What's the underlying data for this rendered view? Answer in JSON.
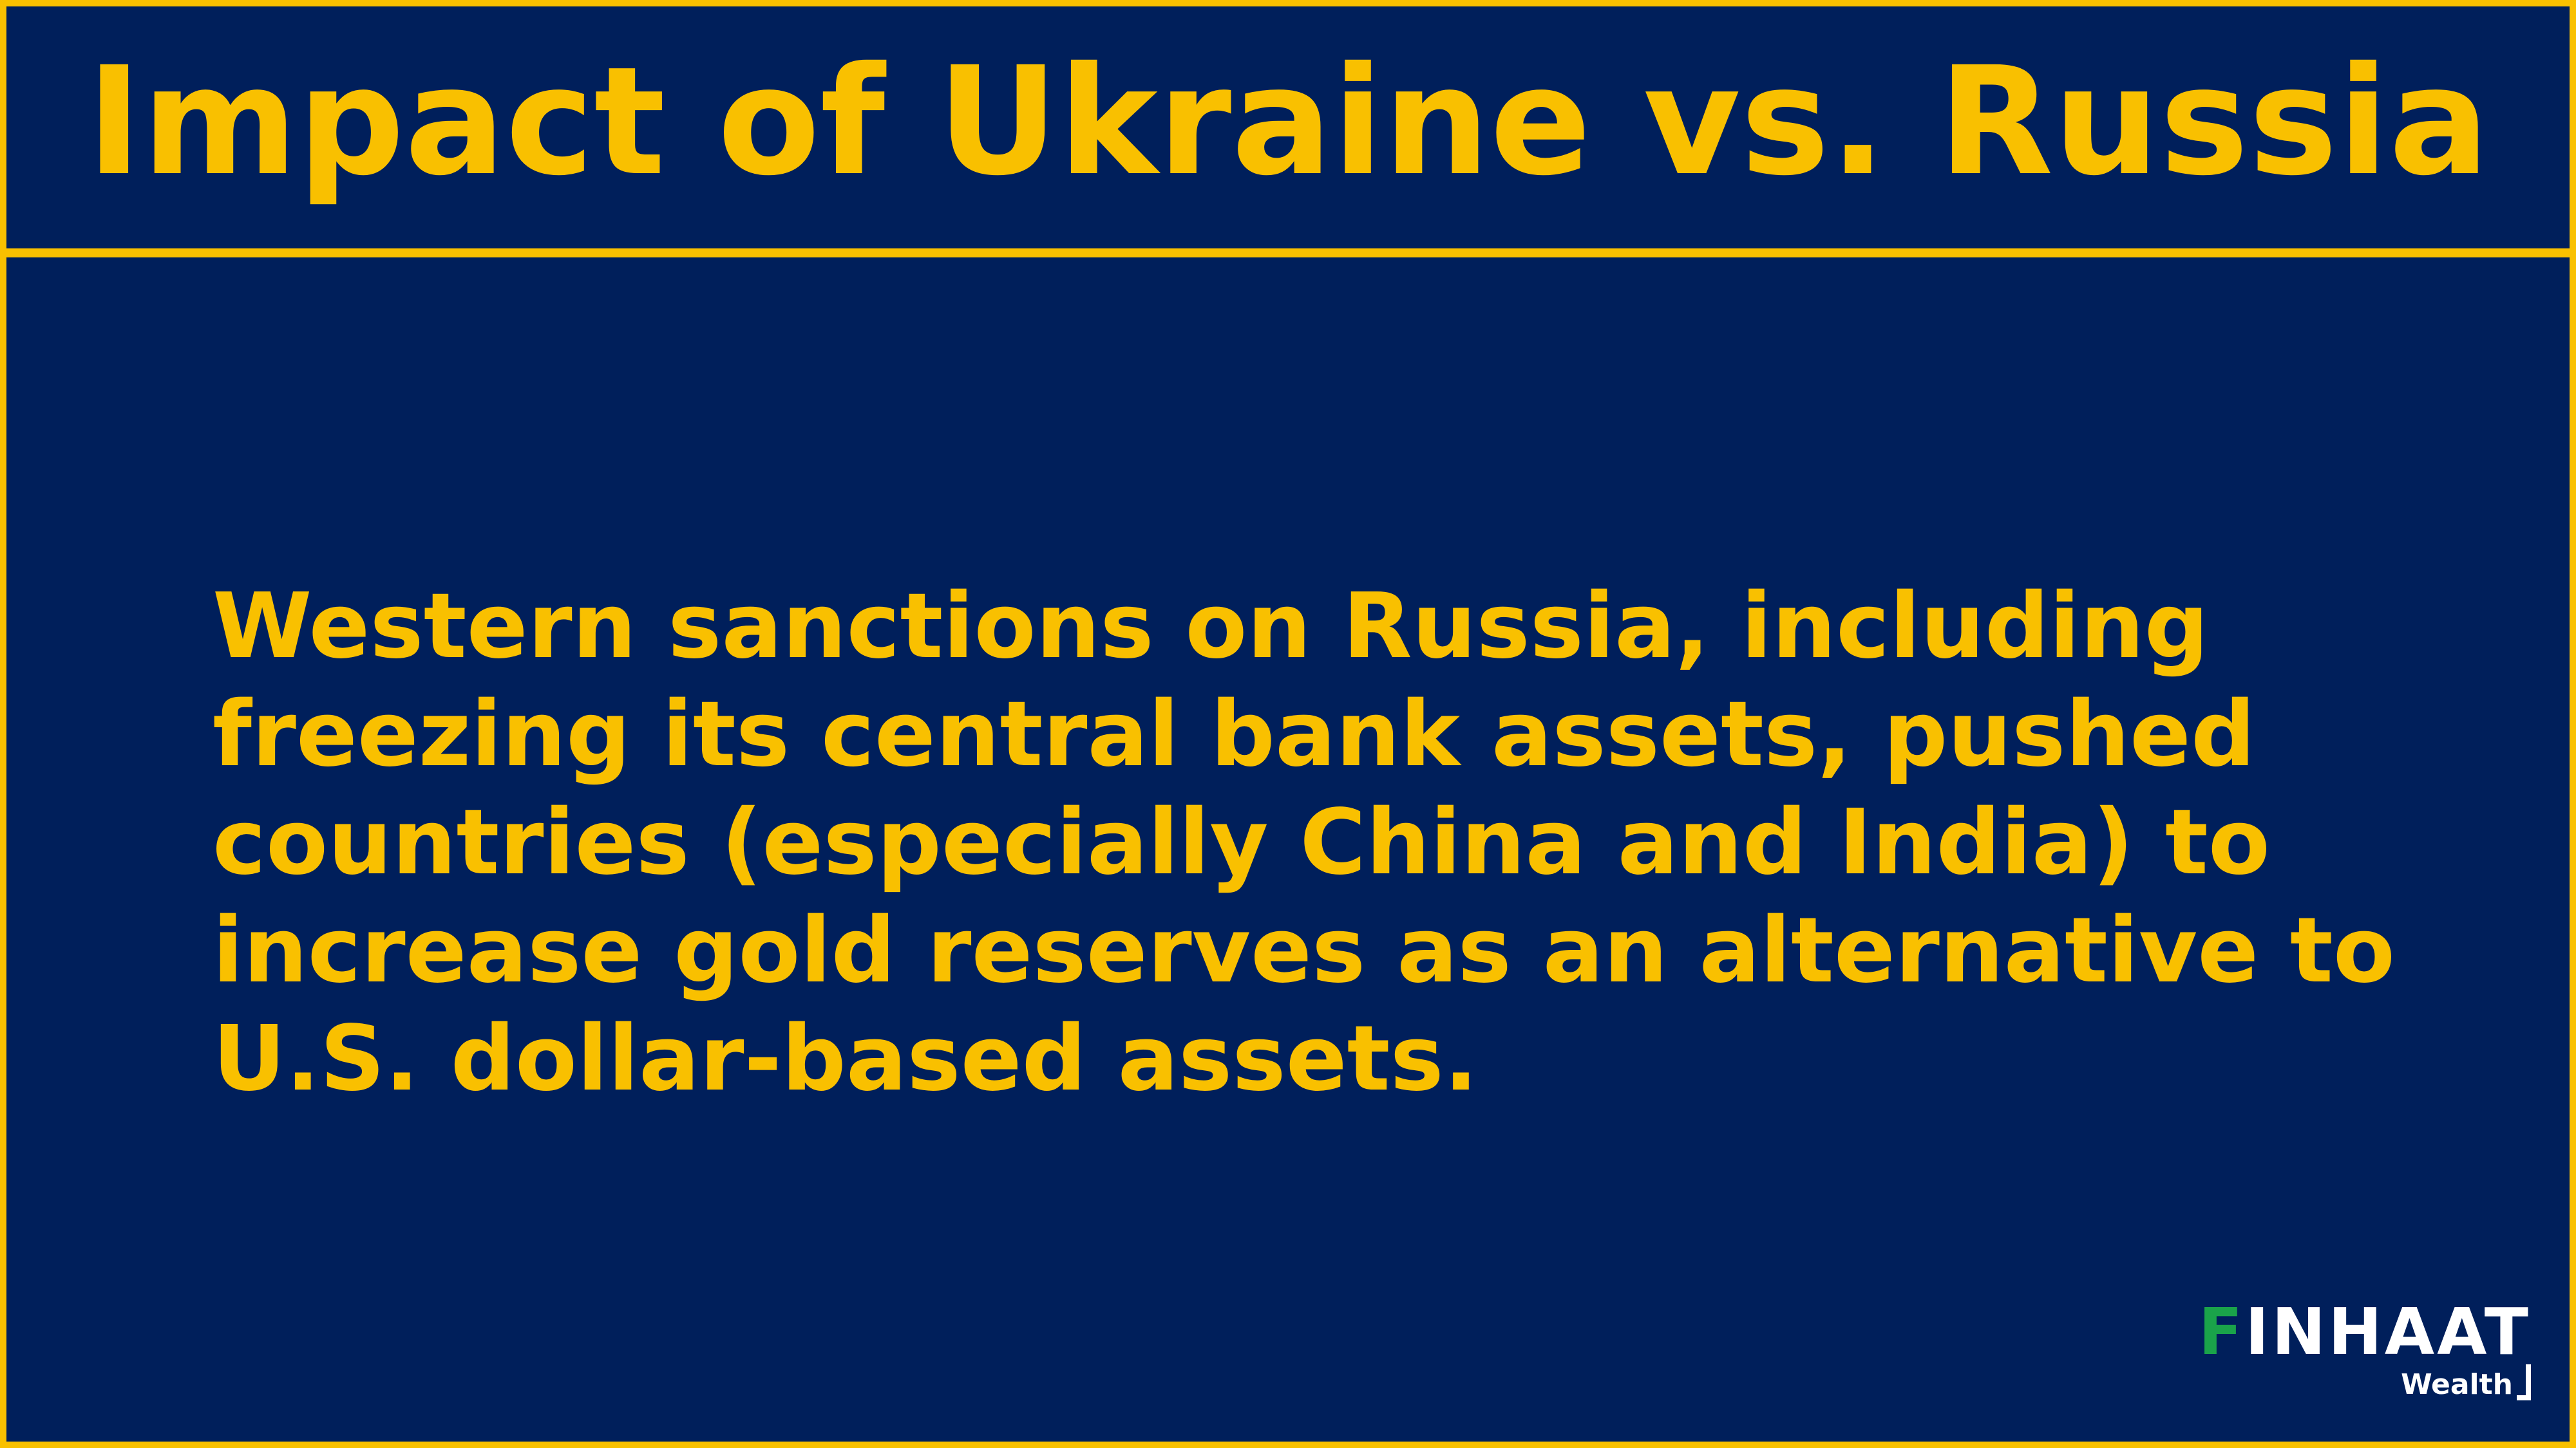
{
  "slide": {
    "title": "Impact of Ukraine vs. Russia",
    "body": "Western sanctions on Russia, including freezing its central bank assets, pushed countries (especially China and India) to increase gold reserves as an alternative to U.S. dollar-based assets."
  },
  "logo": {
    "first_letter": "F",
    "rest_of_name": "INHAAT",
    "sub_label": "Wealth"
  },
  "colors": {
    "background": "#001f5b",
    "accent": "#f9c000",
    "logo_green": "#1aa34a"
  }
}
